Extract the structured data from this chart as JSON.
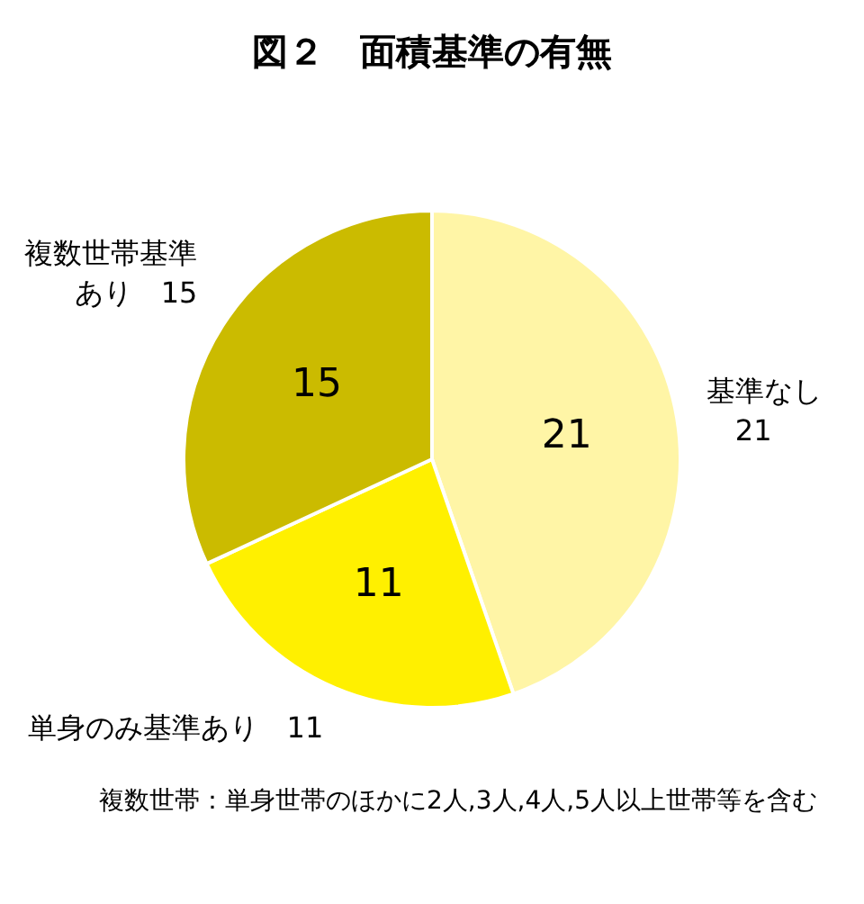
{
  "chart_data": {
    "type": "pie",
    "title": "図２　面積基準の有無",
    "categories": [
      "基準なし",
      "単身のみ基準あり",
      "複数世帯基準あり"
    ],
    "values": [
      21,
      11,
      15
    ],
    "colors": [
      "#fff5a6",
      "#fff000",
      "#cbbb00"
    ],
    "data_labels": true,
    "value_labels": [
      "21",
      "11",
      "15"
    ],
    "annotations": [
      "複数世帯：単身世帯のほかに2人,3人,4人,5人以上世帯等を含む"
    ]
  }
}
